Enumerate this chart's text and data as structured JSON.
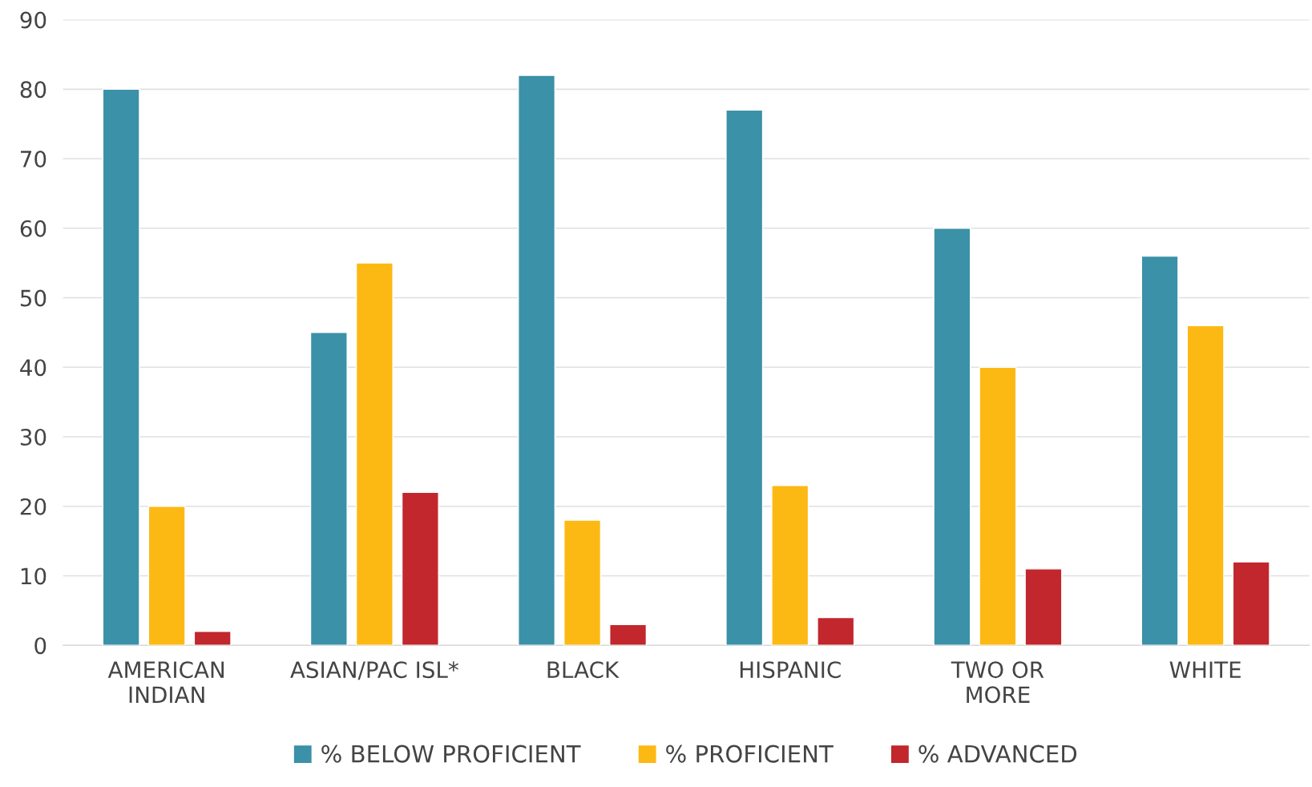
{
  "chart_data": {
    "type": "bar",
    "categories": [
      "AMERICAN\nINDIAN",
      "ASIAN/PAC ISL*",
      "BLACK",
      "HISPANIC",
      "TWO OR\nMORE",
      "WHITE"
    ],
    "series": [
      {
        "name": "% BELOW PROFICIENT",
        "color": "#3a91a8",
        "values": [
          80,
          45,
          82,
          77,
          60,
          56
        ]
      },
      {
        "name": "% PROFICIENT",
        "color": "#fdb913",
        "values": [
          20,
          55,
          18,
          23,
          40,
          46
        ]
      },
      {
        "name": "% ADVANCED",
        "color": "#c1272d",
        "values": [
          2,
          22,
          3,
          4,
          11,
          12
        ]
      }
    ],
    "ylim": [
      0,
      90
    ],
    "yticks": [
      0,
      10,
      20,
      30,
      40,
      50,
      60,
      70,
      80,
      90
    ],
    "grid": "y",
    "legend": "bottom"
  }
}
